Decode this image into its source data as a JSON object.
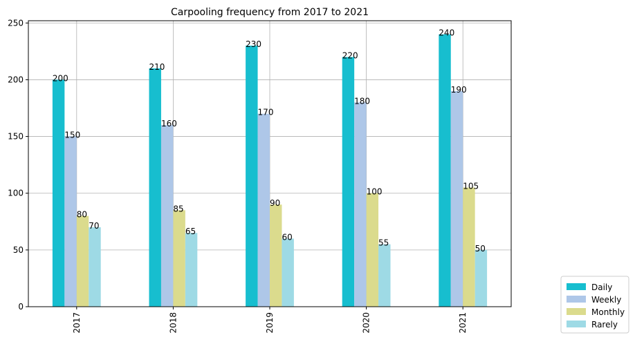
{
  "chart_data": {
    "type": "bar",
    "title": "Carpooling frequency from 2017 to 2021",
    "xlabel": "",
    "ylabel": "",
    "categories": [
      "2017",
      "2018",
      "2019",
      "2020",
      "2021"
    ],
    "ylim": [
      0,
      252
    ],
    "yticks": [
      0,
      50,
      100,
      150,
      200,
      250
    ],
    "grid": true,
    "legend_position": "bottom-right-outside",
    "series": [
      {
        "name": "Daily",
        "color": "#17becf",
        "values": [
          200,
          210,
          230,
          220,
          240
        ]
      },
      {
        "name": "Weekly",
        "color": "#aec7e8",
        "values": [
          150,
          160,
          170,
          180,
          190
        ]
      },
      {
        "name": "Monthly",
        "color": "#dbdb8d",
        "values": [
          80,
          85,
          90,
          100,
          105
        ]
      },
      {
        "name": "Rarely",
        "color": "#9edae5",
        "values": [
          70,
          65,
          60,
          55,
          50
        ]
      }
    ]
  }
}
